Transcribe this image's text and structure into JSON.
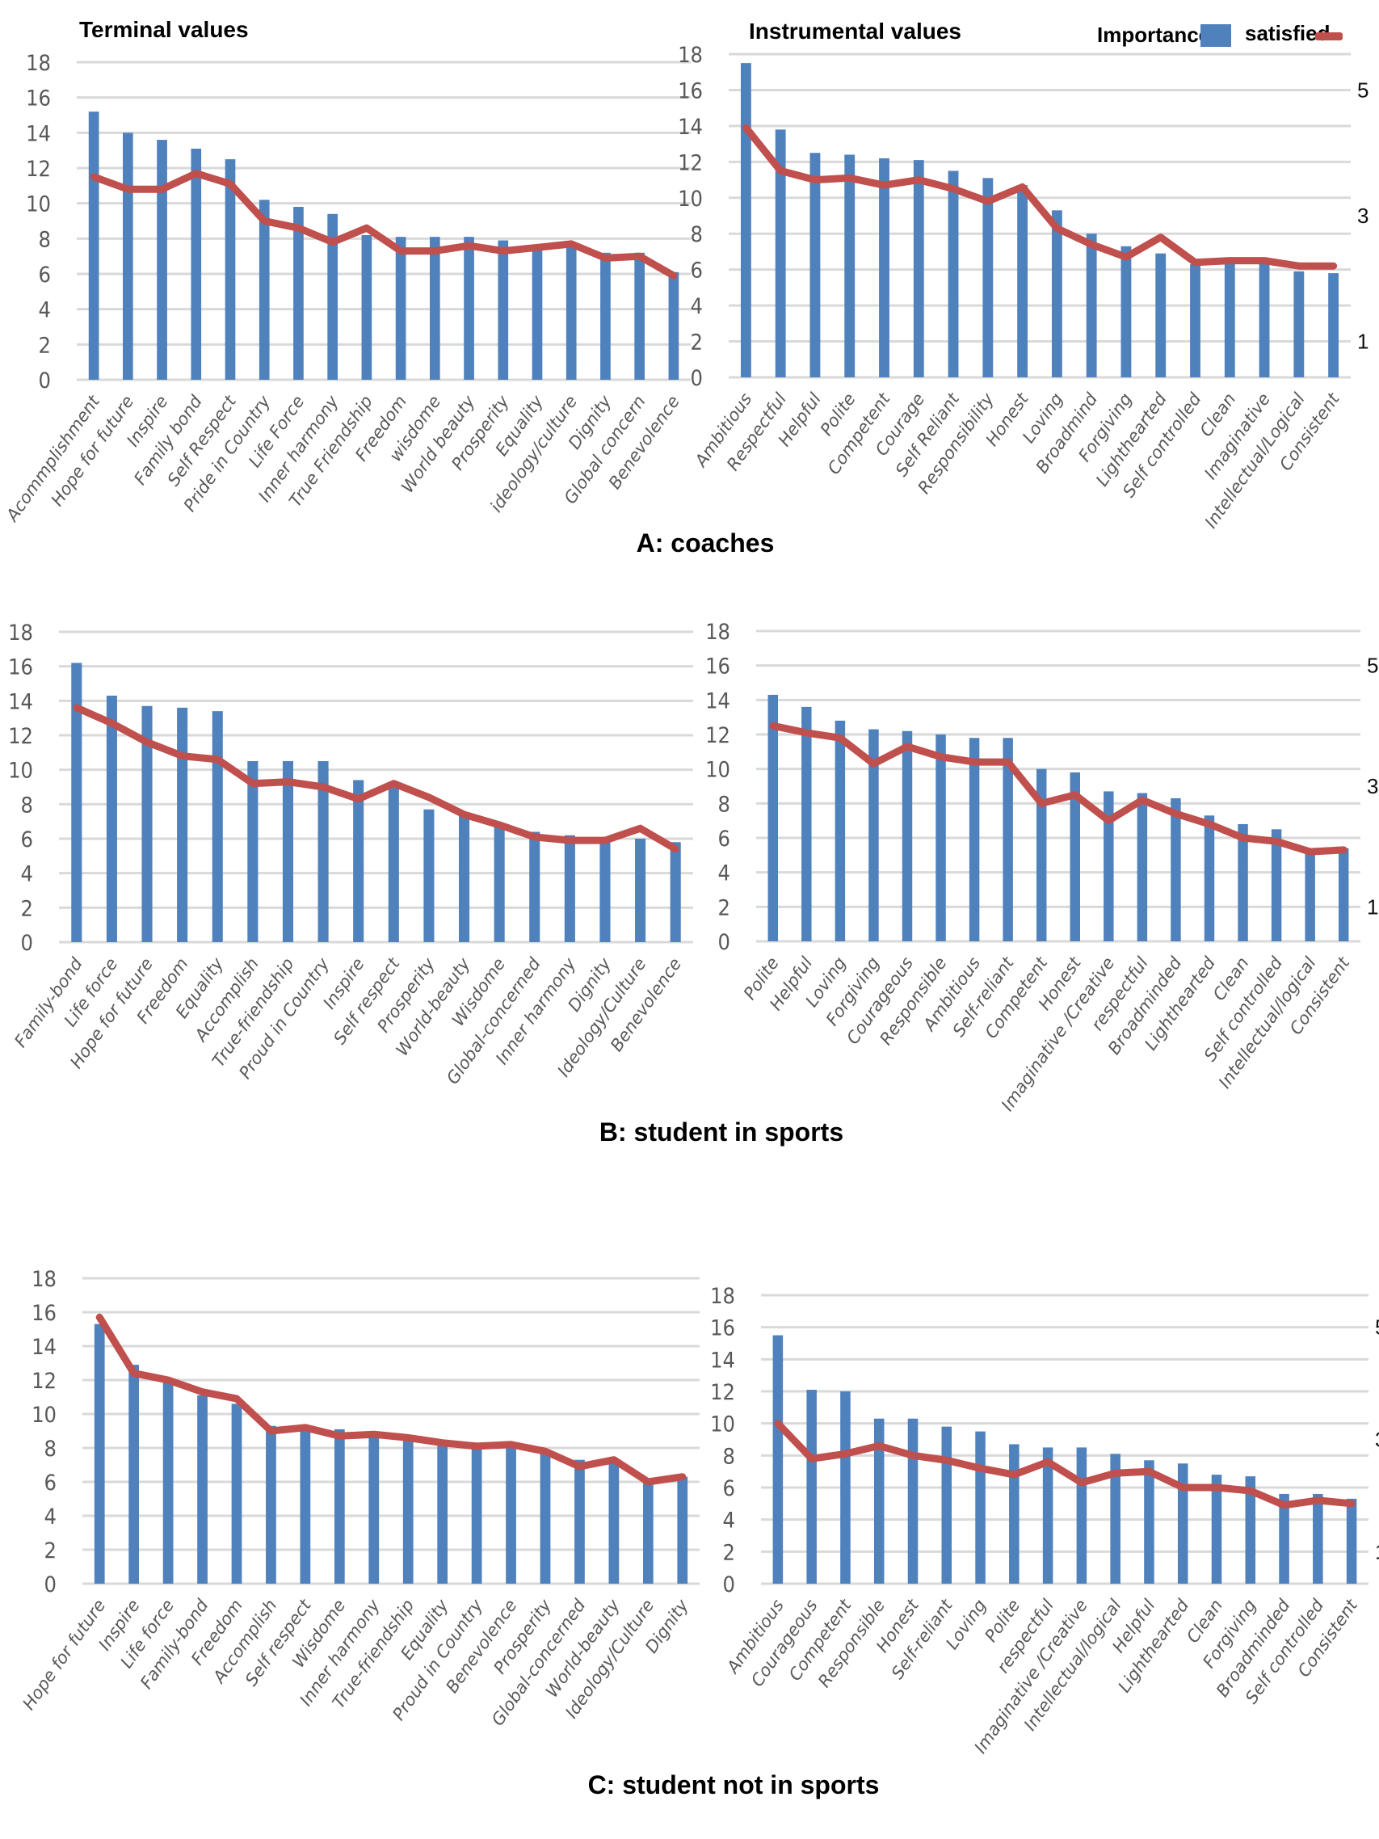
{
  "legend": {
    "bar_label": "Importance",
    "line_label": "satisfied",
    "bar_color": "#4f81bd",
    "line_color": "#c0504d"
  },
  "captions": [
    "A: coaches",
    "B: student in sports",
    "C: student not in sports"
  ],
  "chart_data": [
    {
      "type": "bar+line",
      "group": "A: coaches",
      "title": "Terminal values",
      "xlabel": "",
      "ylabel": "",
      "ylim": [
        0,
        18
      ],
      "yticks": [
        0,
        2,
        4,
        6,
        8,
        10,
        12,
        14,
        16,
        18
      ],
      "right_ticks": [],
      "grid": true,
      "categories": [
        "Acommplishment",
        "Hope for future",
        "Inspire",
        "Family bond",
        "Self Respect",
        "Pride in Country",
        "Life Force",
        "Inner harmony",
        "True Friendship",
        "Freedom",
        "wisdome",
        "World beauty",
        "Prosperity",
        "Equality",
        "ideology/culture",
        "Dignity",
        "Global concern",
        "Benevolence"
      ],
      "series": [
        {
          "name": "Importance",
          "type": "bar",
          "values": [
            15.2,
            14.0,
            13.6,
            13.1,
            12.5,
            10.2,
            9.8,
            9.4,
            8.2,
            8.1,
            8.1,
            8.1,
            7.9,
            7.5,
            7.5,
            7.2,
            7.2,
            6.1
          ]
        },
        {
          "name": "satisfied",
          "type": "line",
          "values": [
            11.5,
            10.8,
            10.8,
            11.7,
            11.1,
            9.0,
            8.6,
            7.8,
            8.6,
            7.3,
            7.3,
            7.6,
            7.3,
            7.5,
            7.7,
            6.9,
            7.0,
            5.9
          ]
        }
      ]
    },
    {
      "type": "bar+line",
      "group": "A: coaches",
      "title": "Instrumental  values",
      "xlabel": "",
      "ylabel": "",
      "ylim": [
        0,
        18
      ],
      "yticks": [
        0,
        2,
        4,
        6,
        8,
        10,
        12,
        14,
        16,
        18
      ],
      "right_ticks": [
        {
          "label": "5",
          "at": 16
        },
        {
          "label": "3",
          "at": 9
        },
        {
          "label": "1",
          "at": 2
        }
      ],
      "grid": true,
      "legend": "top-right",
      "categories": [
        "Ambitious",
        "Respectful",
        "Helpful",
        "Polite",
        "Competent",
        "Courage",
        "Self Reliant",
        "Responsibility",
        "Honest",
        "Loving",
        "Broadmind",
        "Forgiving",
        "Lighthearted",
        "Self controlled",
        "Clean",
        "Imaginative",
        "Intellectual/Logical",
        "Consistent"
      ],
      "series": [
        {
          "name": "Importance",
          "type": "bar",
          "values": [
            17.5,
            13.8,
            12.5,
            12.4,
            12.2,
            12.1,
            11.5,
            11.1,
            10.7,
            9.3,
            8.0,
            7.3,
            6.9,
            6.3,
            6.3,
            6.3,
            5.9,
            5.8
          ]
        },
        {
          "name": "satisfied",
          "type": "line",
          "values": [
            13.9,
            11.5,
            11.0,
            11.1,
            10.7,
            11.0,
            10.5,
            9.8,
            10.6,
            8.3,
            7.4,
            6.7,
            7.8,
            6.4,
            6.5,
            6.5,
            6.2,
            6.2
          ]
        }
      ]
    },
    {
      "type": "bar+line",
      "group": "B: student in sports",
      "title": "",
      "xlabel": "",
      "ylabel": "",
      "ylim": [
        0,
        18
      ],
      "yticks": [
        0,
        2,
        4,
        6,
        8,
        10,
        12,
        14,
        16,
        18
      ],
      "right_ticks": [],
      "grid": true,
      "categories": [
        "Family-bond",
        "Life force",
        "Hope for future",
        "Freedom",
        "Equality",
        "Accomplish",
        "True-friendship",
        "Proud in Country",
        "Inspire",
        "Self respect",
        "Prosperity",
        "World-beauty",
        "Wisdome",
        "Global-concerned",
        "Inner harmony",
        "Dignity",
        "Ideology/Culture",
        "Benevolence"
      ],
      "series": [
        {
          "name": "Importance",
          "type": "bar",
          "values": [
            16.2,
            14.3,
            13.7,
            13.6,
            13.4,
            10.5,
            10.5,
            10.5,
            9.4,
            9.2,
            7.7,
            7.5,
            6.8,
            6.4,
            6.2,
            5.9,
            6.0,
            5.8
          ]
        },
        {
          "name": "satisfied",
          "type": "line",
          "values": [
            13.6,
            12.7,
            11.6,
            10.8,
            10.6,
            9.2,
            9.3,
            9.0,
            8.3,
            9.2,
            8.4,
            7.4,
            6.8,
            6.1,
            5.9,
            5.9,
            6.6,
            5.4
          ]
        }
      ]
    },
    {
      "type": "bar+line",
      "group": "B: student in sports",
      "title": "",
      "xlabel": "",
      "ylabel": "",
      "ylim": [
        0,
        18
      ],
      "yticks": [
        0,
        2,
        4,
        6,
        8,
        10,
        12,
        14,
        16,
        18
      ],
      "right_ticks": [
        {
          "label": "5",
          "at": 16
        },
        {
          "label": "3",
          "at": 9
        },
        {
          "label": "1",
          "at": 2
        }
      ],
      "grid": true,
      "categories": [
        "Polite",
        "Helpful",
        "Loving",
        "Forgiving",
        "Courageous",
        "Responsible",
        "Ambitious",
        "Self-reliant",
        "Competent",
        "Honest",
        "Imaginative /Creative",
        "respectful",
        "Broadminded",
        "Lighthearted",
        "Clean",
        "Self controlled",
        "Intellectual/logical",
        "Consistent"
      ],
      "series": [
        {
          "name": "Importance",
          "type": "bar",
          "values": [
            14.3,
            13.6,
            12.8,
            12.3,
            12.2,
            12.0,
            11.8,
            11.8,
            10.0,
            9.8,
            8.7,
            8.6,
            8.3,
            7.3,
            6.8,
            6.5,
            5.3,
            5.4
          ]
        },
        {
          "name": "satisfied",
          "type": "line",
          "values": [
            12.5,
            12.1,
            11.8,
            10.3,
            11.3,
            10.7,
            10.4,
            10.4,
            8.0,
            8.5,
            7.0,
            8.2,
            7.4,
            6.8,
            6.0,
            5.8,
            5.2,
            5.3
          ]
        }
      ]
    },
    {
      "type": "bar+line",
      "group": "C: student not in sports",
      "title": "",
      "xlabel": "",
      "ylabel": "",
      "ylim": [
        0,
        18
      ],
      "yticks": [
        0,
        2,
        4,
        6,
        8,
        10,
        12,
        14,
        16,
        18
      ],
      "right_ticks": [],
      "grid": true,
      "categories": [
        "Hope for future",
        "Inspire",
        "Life force",
        "Family-bond",
        "Freedom",
        "Accomplish",
        "Self respect",
        "Wisdome",
        "Inner harmony",
        "True-friendship",
        "Equality",
        "Proud in Country",
        "Benevolence",
        "Prosperity",
        "Global-concerned",
        "World-beauty",
        "Ideology/Culture",
        "Dignity"
      ],
      "series": [
        {
          "name": "Importance",
          "type": "bar",
          "values": [
            15.3,
            12.9,
            12.0,
            11.1,
            10.6,
            9.3,
            9.0,
            9.1,
            8.8,
            8.6,
            8.3,
            8.2,
            8.3,
            7.7,
            7.3,
            7.1,
            6.1,
            6.3
          ]
        },
        {
          "name": "satisfied",
          "type": "line",
          "values": [
            15.7,
            12.4,
            12.0,
            11.3,
            10.9,
            9.0,
            9.2,
            8.7,
            8.8,
            8.6,
            8.3,
            8.1,
            8.2,
            7.8,
            6.9,
            7.3,
            6.0,
            6.3
          ]
        }
      ]
    },
    {
      "type": "bar+line",
      "group": "C: student not in sports",
      "title": "",
      "xlabel": "",
      "ylabel": "",
      "ylim": [
        0,
        18
      ],
      "yticks": [
        0,
        2,
        4,
        6,
        8,
        10,
        12,
        14,
        16,
        18
      ],
      "right_ticks": [
        {
          "label": "5",
          "at": 16
        },
        {
          "label": "3",
          "at": 9
        },
        {
          "label": "1",
          "at": 2
        }
      ],
      "grid": true,
      "categories": [
        "Ambitious",
        "Courageous",
        "Competent",
        "Responsible",
        "Honest",
        "Self-reliant",
        "Loving",
        "Polite",
        "respectful",
        "Imaginative /Creative",
        "Intellectual/logical",
        "Helpful",
        "Lighthearted",
        "Clean",
        "Forgiving",
        "Broadminded",
        "Self controlled",
        "Consistent"
      ],
      "series": [
        {
          "name": "Importance",
          "type": "bar",
          "values": [
            15.5,
            12.1,
            12.0,
            10.3,
            10.3,
            9.8,
            9.5,
            8.7,
            8.5,
            8.5,
            8.1,
            7.7,
            7.5,
            6.8,
            6.7,
            5.6,
            5.6,
            5.3
          ]
        },
        {
          "name": "satisfied",
          "type": "line",
          "values": [
            10.0,
            7.8,
            8.1,
            8.6,
            8.0,
            7.7,
            7.2,
            6.8,
            7.6,
            6.3,
            6.9,
            7.0,
            6.0,
            6.0,
            5.8,
            4.9,
            5.2,
            5.0
          ]
        }
      ]
    }
  ]
}
